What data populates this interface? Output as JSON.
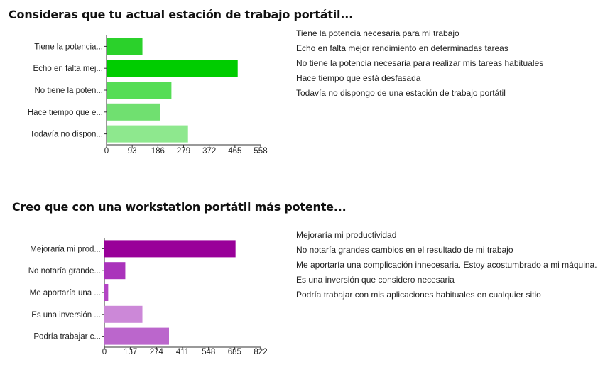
{
  "chart_data": [
    {
      "type": "bar",
      "orientation": "horizontal",
      "title": "Consideras que tu actual estación de trabajo portátil...",
      "categories": [
        "Tiene la potencia...",
        "Echo en falta mej...",
        "No tiene la poten...",
        "Hace tiempo que e...",
        "Todavía no dispon..."
      ],
      "legend": [
        "Tiene la potencia necesaria para mi trabajo",
        "Echo en falta mejor rendimiento en determinadas tareas",
        "No tiene la potencia necesaria para realizar mis tareas habituales",
        "Hace tiempo que está desfasada",
        "Todavía no dispongo de una estación de trabajo portátil"
      ],
      "values": [
        130,
        475,
        235,
        195,
        295
      ],
      "colors": [
        "#2bd12b",
        "#00cc00",
        "#55dd55",
        "#70e070",
        "#8ee88e"
      ],
      "xlim": [
        0,
        558
      ],
      "xticks": [
        "0",
        "93",
        "186",
        "279",
        "372",
        "465",
        "558"
      ],
      "grid": false,
      "legend_position": "right"
    },
    {
      "type": "bar",
      "orientation": "horizontal",
      "title": "Creo que con una workstation portátil más potente...",
      "categories": [
        "Mejoraría mi prod...",
        "No notaría grande...",
        "Me aportaría una ...",
        "Es una inversión ...",
        "Podría trabajar c..."
      ],
      "legend": [
        "Mejoraría mi productividad",
        "No notaría grandes cambios en el resultado de mi trabajo",
        "Me aportaría una complicación innecesaria. Estoy acostumbrado a mi máquina.",
        "Es una inversión que considero necesaria",
        "Podría trabajar con mis aplicaciones habituales en cualquier sitio"
      ],
      "values": [
        690,
        110,
        20,
        200,
        340
      ],
      "colors": [
        "#990099",
        "#aa33bb",
        "#b344c4",
        "#cc88d8",
        "#bb66cc"
      ],
      "xlim": [
        0,
        822
      ],
      "xticks": [
        "0",
        "137",
        "274",
        "411",
        "548",
        "685",
        "822"
      ],
      "grid": false,
      "legend_position": "right"
    }
  ]
}
